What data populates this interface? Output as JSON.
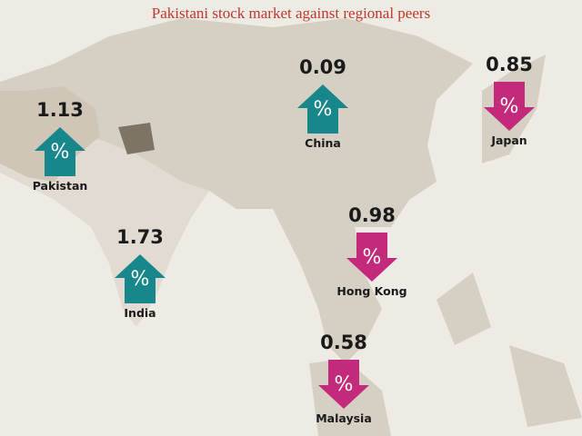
{
  "title": "Pakistani stock market against regional peers",
  "arrow_symbol": "%",
  "colors": {
    "up": "#17878c",
    "down": "#c42a7c"
  },
  "markets": [
    {
      "name": "Pakistan",
      "value": 1.13,
      "direction": "up"
    },
    {
      "name": "India",
      "value": 1.73,
      "direction": "up"
    },
    {
      "name": "China",
      "value": 0.09,
      "direction": "up"
    },
    {
      "name": "Japan",
      "value": 0.85,
      "direction": "down"
    },
    {
      "name": "Hong Kong",
      "value": 0.98,
      "direction": "down"
    },
    {
      "name": "Malaysia",
      "value": 0.58,
      "direction": "down"
    }
  ]
}
